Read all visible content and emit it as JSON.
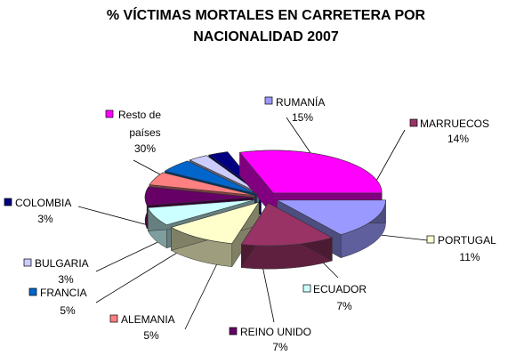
{
  "chart_data": {
    "type": "pie",
    "title_line1": "% VÍCTIMAS MORTALES EN CARRETERA POR",
    "title_line2": "NACIONALIDAD 2007",
    "slices": [
      {
        "label": "RUMANÍA",
        "value": 15,
        "value_text": "15%",
        "color": "#9999ff"
      },
      {
        "label": "MARRUECOS",
        "value": 14,
        "value_text": "14%",
        "color": "#993366"
      },
      {
        "label": "PORTUGAL",
        "value": 11,
        "value_text": "11%",
        "color": "#ffffcc"
      },
      {
        "label": "ECUADOR",
        "value": 7,
        "value_text": "7%",
        "color": "#ccffff"
      },
      {
        "label": "REINO UNIDO",
        "value": 7,
        "value_text": "7%",
        "color": "#660066"
      },
      {
        "label": "ALEMANIA",
        "value": 5,
        "value_text": "5%",
        "color": "#ff8080"
      },
      {
        "label": "FRANCIA",
        "value": 5,
        "value_text": "5%",
        "color": "#0066cc"
      },
      {
        "label": "BULGARIA",
        "value": 3,
        "value_text": "3%",
        "color": "#ccccff"
      },
      {
        "label": "COLOMBIA",
        "value": 3,
        "value_text": "3%",
        "color": "#000080"
      },
      {
        "label_line1": "Resto de",
        "label_line2": "países",
        "value": 30,
        "value_text": "30%",
        "color": "#ff00ff"
      }
    ]
  }
}
